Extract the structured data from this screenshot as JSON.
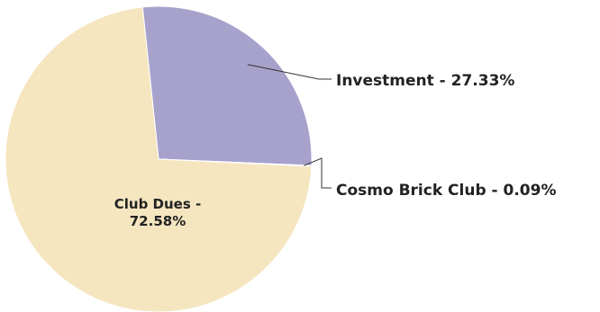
{
  "chart_data": {
    "type": "pie",
    "start_angle_deg": -6,
    "slices": [
      {
        "label": "Investment",
        "value": 27.33,
        "display": "Investment - 27.33%",
        "color": "#a7a2cc"
      },
      {
        "label": "Cosmo Brick Club",
        "value": 0.09,
        "display": "Cosmo Brick Club - 0.09%",
        "color": "#b7b3d6"
      },
      {
        "label": "Club Dues",
        "value": 72.58,
        "display_line1": "Club Dues -",
        "display_line2": "72.58%",
        "color": "#f5e6c0"
      }
    ]
  }
}
